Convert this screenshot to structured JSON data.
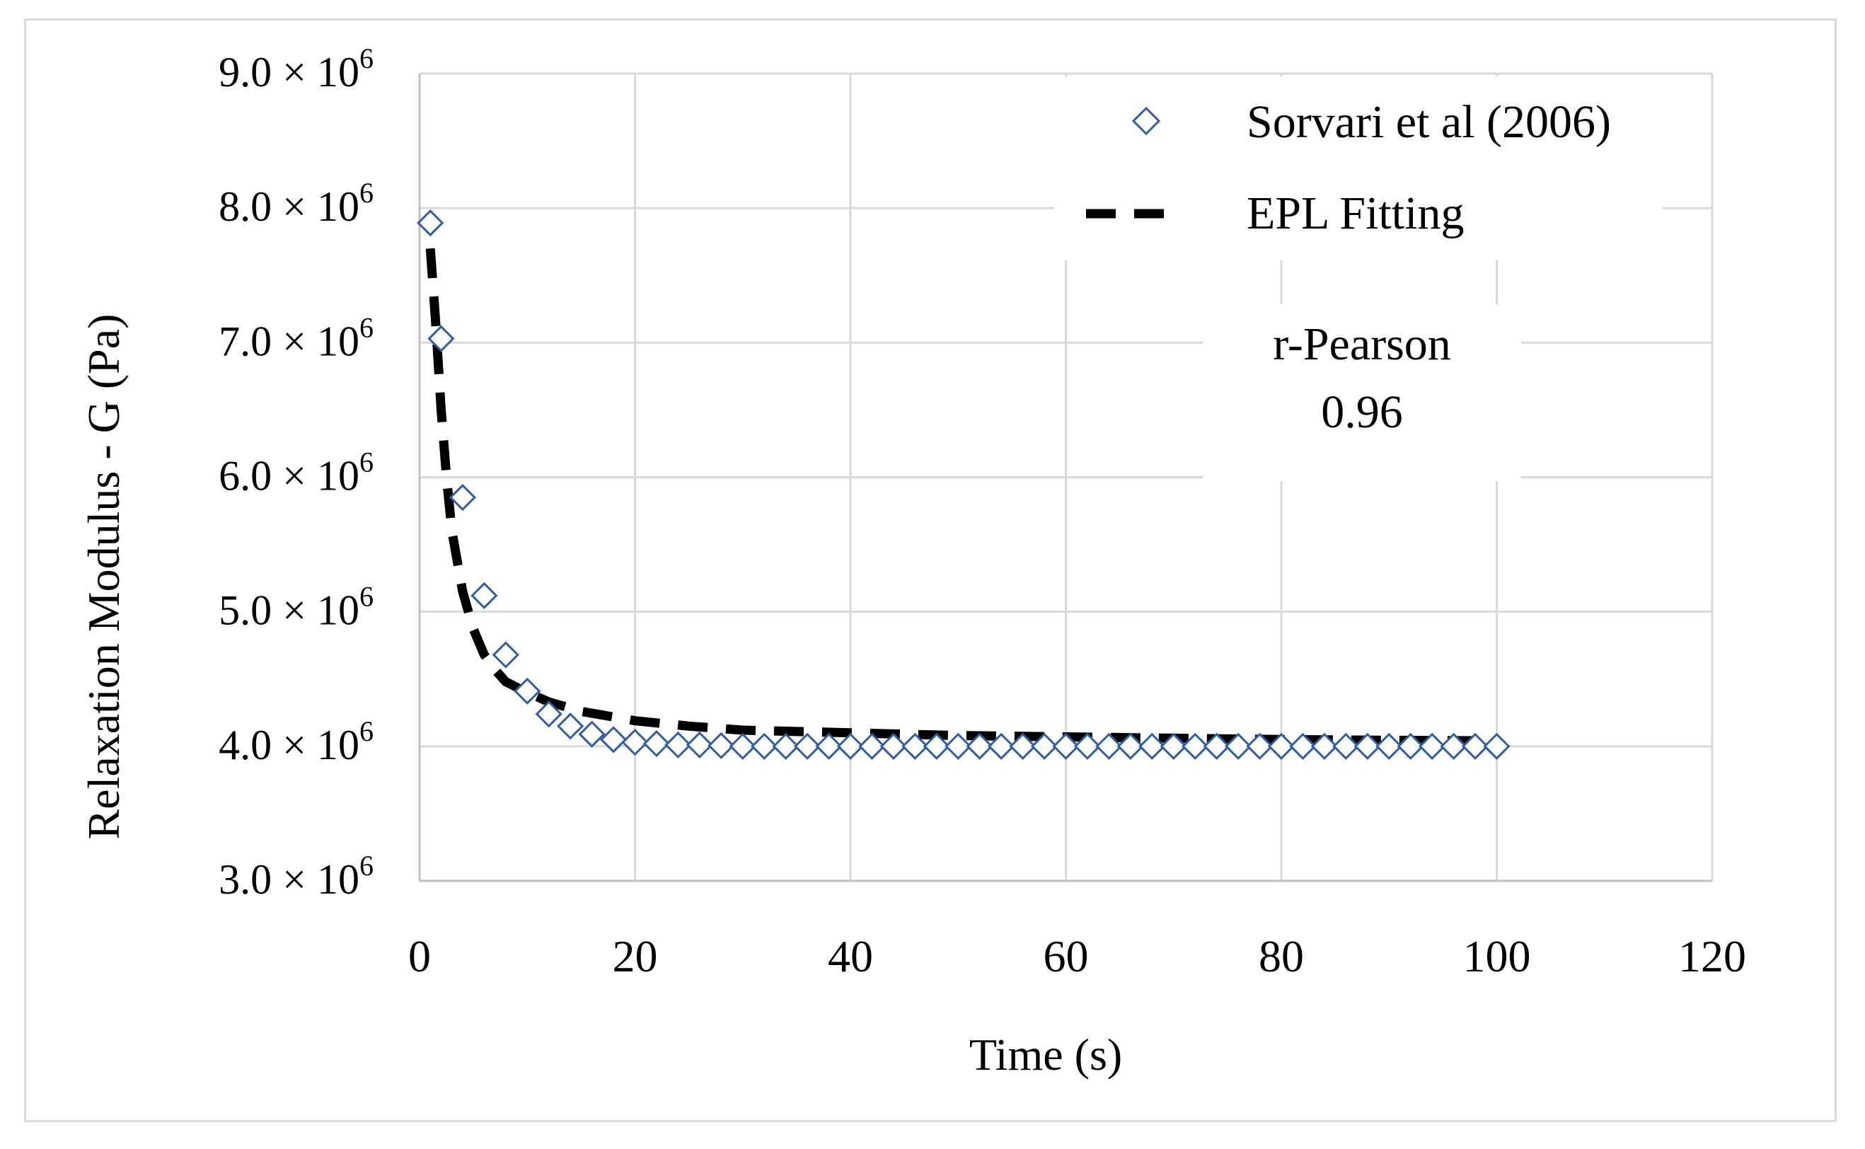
{
  "chart_data": {
    "type": "scatter",
    "title": "",
    "xlabel": "Time (s)",
    "ylabel": "Relaxation Modulus - G (Pa)",
    "xlim": [
      0,
      120
    ],
    "ylim": [
      3000000,
      9000000
    ],
    "grid": true,
    "x_ticks": [
      "0",
      "20",
      "40",
      "60",
      "80",
      "100",
      "120"
    ],
    "y_ticks": [
      {
        "value": 3000000,
        "mantissa": "3.0",
        "times": "×",
        "base": "10",
        "exp": "6"
      },
      {
        "value": 4000000,
        "mantissa": "4.0",
        "times": "×",
        "base": "10",
        "exp": "6"
      },
      {
        "value": 5000000,
        "mantissa": "5.0",
        "times": "×",
        "base": "10",
        "exp": "6"
      },
      {
        "value": 6000000,
        "mantissa": "6.0",
        "times": "×",
        "base": "10",
        "exp": "6"
      },
      {
        "value": 7000000,
        "mantissa": "7.0",
        "times": "×",
        "base": "10",
        "exp": "6"
      },
      {
        "value": 8000000,
        "mantissa": "8.0",
        "times": "×",
        "base": "10",
        "exp": "6"
      },
      {
        "value": 9000000,
        "mantissa": "9.0",
        "times": "×",
        "base": "10",
        "exp": "6"
      }
    ],
    "legend_position": "top-right",
    "series": [
      {
        "name": "Sorvari et al (2006)",
        "kind": "markers",
        "marker": "diamond-open",
        "color": "#2e5eaa",
        "x": [
          1,
          2,
          4,
          6,
          8,
          10,
          12,
          14,
          16,
          18,
          20,
          22,
          24,
          26,
          28,
          30,
          32,
          34,
          36,
          38,
          40,
          42,
          44,
          46,
          48,
          50,
          52,
          54,
          56,
          58,
          60,
          62,
          64,
          66,
          68,
          70,
          72,
          74,
          76,
          78,
          80,
          82,
          84,
          86,
          88,
          90,
          92,
          94,
          96,
          98,
          100
        ],
        "y": [
          7890000,
          7030000,
          5850000,
          5120000,
          4680000,
          4410000,
          4240000,
          4150000,
          4090000,
          4050000,
          4030000,
          4020000,
          4010000,
          4010000,
          4005000,
          4000000,
          4000000,
          4000000,
          4000000,
          4000000,
          4000000,
          4000000,
          4000000,
          4000000,
          4000000,
          4000000,
          4000000,
          4000000,
          4000000,
          4000000,
          4000000,
          4000000,
          4000000,
          4000000,
          4000000,
          4000000,
          4000000,
          4000000,
          4000000,
          4000000,
          4000000,
          4000000,
          4000000,
          4000000,
          4000000,
          4000000,
          4000000,
          4000000,
          4000000,
          4000000,
          4000000
        ]
      },
      {
        "name": "EPL Fitting",
        "kind": "line",
        "dash": "dashed",
        "color": "#000000",
        "x": [
          1,
          1.5,
          2,
          2.5,
          3,
          4,
          5,
          6,
          7,
          8,
          10,
          12,
          15,
          20,
          25,
          30,
          40,
          50,
          60,
          70,
          80,
          90,
          100
        ],
        "y": [
          7700000,
          7150000,
          6500000,
          6000000,
          5600000,
          5150000,
          4870000,
          4680000,
          4570000,
          4480000,
          4400000,
          4330000,
          4260000,
          4190000,
          4150000,
          4120000,
          4100000,
          4080000,
          4070000,
          4060000,
          4050000,
          4045000,
          4040000
        ]
      }
    ],
    "annotation": {
      "label": "r-Pearson",
      "value": "0.96"
    }
  }
}
